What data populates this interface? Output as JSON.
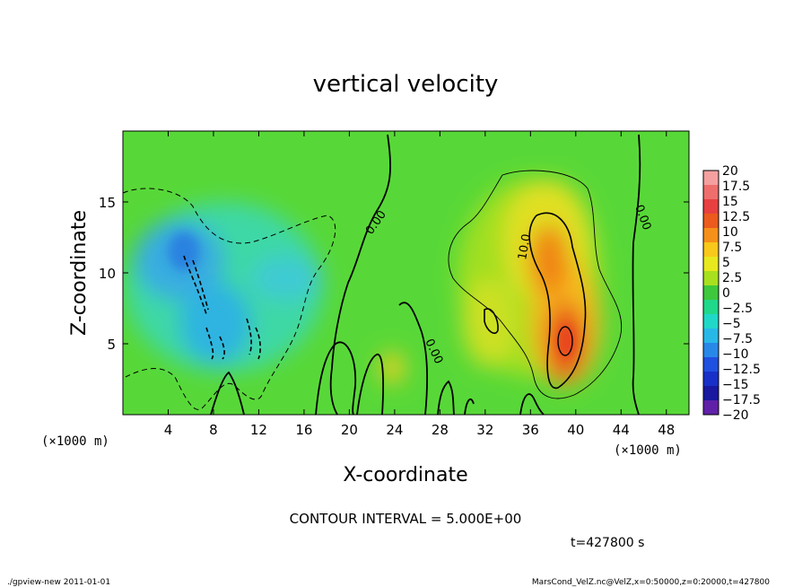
{
  "chart_data": {
    "type": "heatmap",
    "title": "vertical velocity",
    "xlabel": "X-coordinate",
    "ylabel": "Z-coordinate",
    "x_unit": "(×1000 m)",
    "y_unit": "(×1000 m)",
    "xlim": [
      0,
      50
    ],
    "ylim": [
      0,
      20
    ],
    "x_ticks": [
      4,
      8,
      12,
      16,
      20,
      24,
      28,
      32,
      36,
      40,
      44,
      48
    ],
    "y_ticks": [
      5,
      10,
      15
    ],
    "colorbar": {
      "labels": [
        "20",
        "17.5",
        "15",
        "12.5",
        "10",
        "7.5",
        "5",
        "2.5",
        "0",
        "−2.5",
        "−5",
        "−7.5",
        "−10",
        "−12.5",
        "−15",
        "−17.5",
        "−20"
      ],
      "colors": [
        "#f4a0a0",
        "#ee6e6e",
        "#e84040",
        "#ec5a1e",
        "#f5901a",
        "#f8c81a",
        "#e8e81e",
        "#a8e01e",
        "#3ec83c",
        "#20d88a",
        "#20d8c8",
        "#28b8e8",
        "#2888e8",
        "#2050e0",
        "#1830c8",
        "#1818a0",
        "#6020a8"
      ]
    },
    "contour_labels": [
      "0.00",
      "0.00",
      "0.00",
      "10.0"
    ],
    "contour_interval_text": "CONTOUR INTERVAL = 5.000E+00",
    "time_text": "t=427800 s"
  },
  "footer": {
    "left": "./gpview-new  2011-01-01",
    "right": "MarsCond_VelZ.nc@VelZ,x=0:50000,z=0:20000,t=427800"
  }
}
